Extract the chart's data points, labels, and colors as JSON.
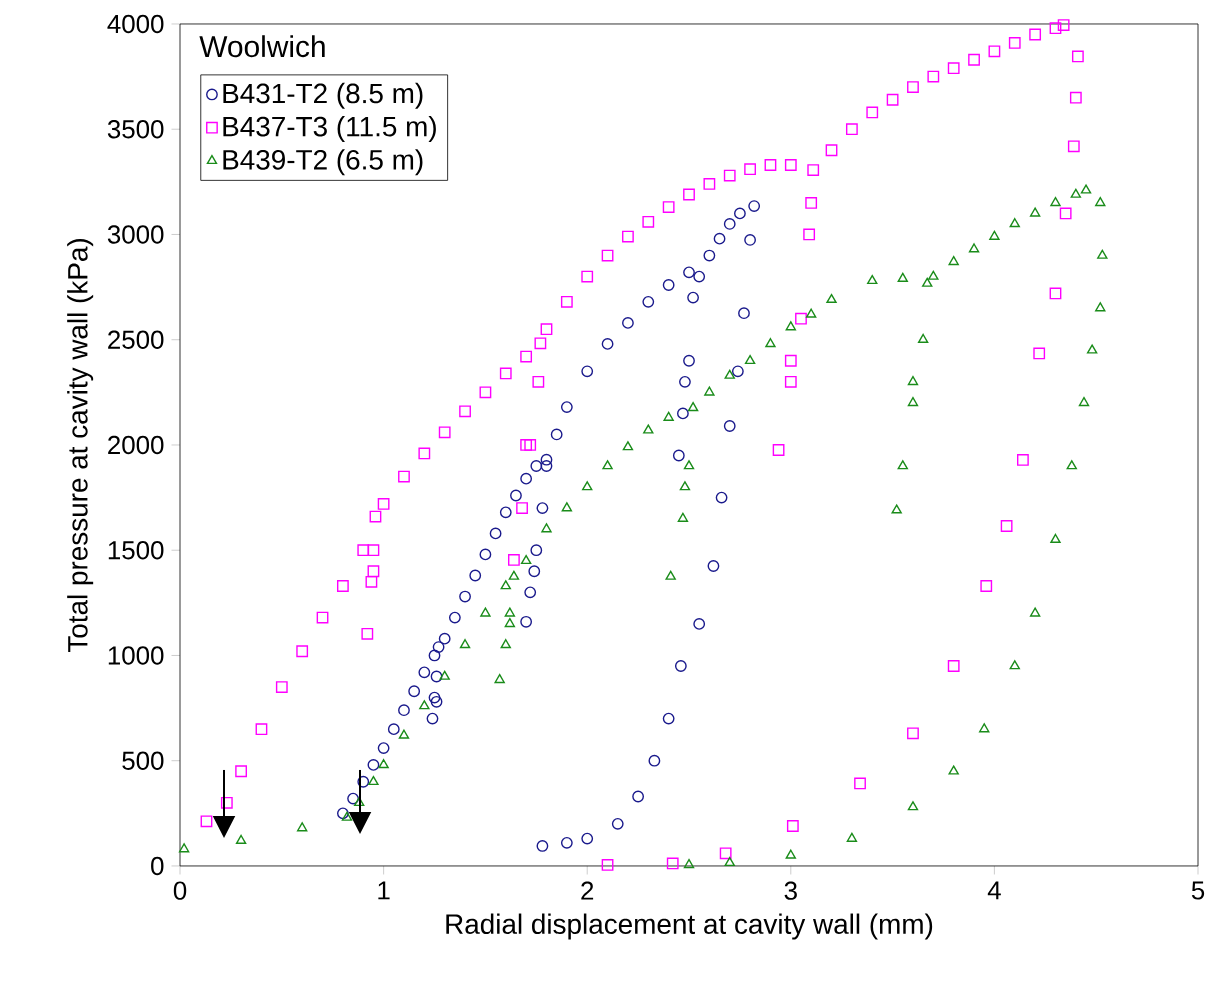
{
  "chart_data": {
    "type": "scatter",
    "xlabel": "Radial displacement at cavity wall (mm)",
    "ylabel": "Total pressure at cavity wall (kPa)",
    "legend_title": "Woolwich",
    "legend": "top left",
    "grid": false,
    "xlim": [
      0,
      5
    ],
    "xticks": [
      0,
      1,
      2,
      3,
      4,
      5
    ],
    "ylim": [
      0,
      4000
    ],
    "yticks": [
      0,
      500,
      1000,
      1500,
      2000,
      2500,
      3000,
      3500,
      4000
    ],
    "series": [
      {
        "name": "B431-T2 (8.5 m)",
        "color": "#1a1a8c",
        "marker": "circle",
        "x": [
          0.8,
          0.85,
          0.9,
          0.95,
          1.0,
          1.05,
          1.1,
          1.15,
          1.2,
          1.25,
          1.27,
          1.26,
          1.25,
          1.24,
          1.26,
          1.3,
          1.35,
          1.4,
          1.45,
          1.5,
          1.55,
          1.6,
          1.65,
          1.7,
          1.75,
          1.8,
          1.78,
          1.75,
          1.72,
          1.7,
          1.74,
          1.8,
          1.85,
          1.9,
          2.0,
          2.1,
          2.2,
          2.3,
          2.4,
          2.5,
          2.52,
          2.5,
          2.47,
          2.45,
          2.48,
          2.55,
          2.6,
          2.65,
          2.7,
          2.75,
          2.82,
          2.8,
          2.77,
          2.74,
          2.7,
          2.66,
          2.62,
          2.55,
          2.46,
          2.4,
          2.33,
          2.25,
          2.15,
          2.0,
          1.9,
          1.78
        ],
        "values": [
          250,
          320,
          400,
          480,
          560,
          650,
          740,
          830,
          920,
          1000,
          1040,
          900,
          800,
          700,
          780,
          1080,
          1180,
          1280,
          1380,
          1480,
          1580,
          1680,
          1760,
          1840,
          1900,
          1930,
          1700,
          1500,
          1300,
          1160,
          1400,
          1900,
          2050,
          2180,
          2350,
          2480,
          2580,
          2680,
          2760,
          2820,
          2700,
          2400,
          2150,
          1950,
          2300,
          2800,
          2900,
          2980,
          3050,
          3100,
          3135,
          2974,
          2626,
          2350,
          2090,
          1750,
          1425,
          1150,
          950,
          700,
          500,
          330,
          200,
          130,
          110,
          95
        ]
      },
      {
        "name": "B437-T3 (11.5 m)",
        "color": "#ff00ff",
        "marker": "square",
        "x": [
          0.13,
          0.23,
          0.3,
          0.4,
          0.5,
          0.6,
          0.7,
          0.8,
          0.9,
          0.96,
          0.95,
          0.94,
          0.92,
          0.95,
          1.0,
          1.1,
          1.2,
          1.3,
          1.4,
          1.5,
          1.6,
          1.7,
          1.77,
          1.76,
          1.72,
          1.68,
          1.64,
          1.7,
          1.8,
          1.9,
          2.0,
          2.1,
          2.2,
          2.3,
          2.4,
          2.5,
          2.6,
          2.7,
          2.8,
          2.9,
          3.0,
          3.11,
          3.09,
          3.05,
          3.0,
          2.94,
          3.0,
          3.1,
          3.2,
          3.3,
          3.4,
          3.5,
          3.6,
          3.7,
          3.8,
          3.9,
          4.0,
          4.1,
          4.2,
          4.3,
          4.34,
          4.41,
          4.4,
          4.39,
          4.35,
          4.3,
          4.22,
          4.14,
          4.06,
          3.96,
          3.8,
          3.6,
          3.34,
          3.01,
          2.68,
          2.42,
          2.1
        ],
        "values": [
          212,
          300,
          450,
          650,
          850,
          1020,
          1180,
          1330,
          1500,
          1660,
          1500,
          1350,
          1103,
          1400,
          1720,
          1850,
          1960,
          2060,
          2160,
          2250,
          2340,
          2420,
          2483,
          2300,
          2000,
          1700,
          1454,
          2000,
          2550,
          2680,
          2800,
          2900,
          2990,
          3060,
          3130,
          3190,
          3240,
          3280,
          3310,
          3330,
          3330,
          3306,
          3000,
          2600,
          2300,
          1976,
          2400,
          3150,
          3400,
          3500,
          3580,
          3640,
          3700,
          3750,
          3790,
          3830,
          3870,
          3910,
          3950,
          3980,
          3995,
          3846,
          3650,
          3419,
          3100,
          2720,
          2435,
          1929,
          1615,
          1330,
          950,
          630,
          392,
          190,
          60,
          12,
          5
        ]
      },
      {
        "name": "B439-T2 (6.5 m)",
        "color": "#1a8c1a",
        "marker": "triangle",
        "x": [
          0.02,
          0.3,
          0.6,
          0.82,
          0.88,
          0.95,
          1.0,
          1.1,
          1.2,
          1.3,
          1.4,
          1.5,
          1.6,
          1.64,
          1.62,
          1.6,
          1.57,
          1.62,
          1.7,
          1.8,
          1.9,
          2.0,
          2.1,
          2.2,
          2.3,
          2.4,
          2.52,
          2.5,
          2.47,
          2.41,
          2.48,
          2.6,
          2.7,
          2.8,
          2.9,
          3.0,
          3.1,
          3.2,
          3.4,
          3.55,
          3.67,
          3.65,
          3.6,
          3.55,
          3.52,
          3.6,
          3.7,
          3.8,
          3.9,
          4.0,
          4.1,
          4.2,
          4.3,
          4.4,
          4.45,
          4.52,
          4.53,
          4.52,
          4.48,
          4.44,
          4.38,
          4.3,
          4.2,
          4.1,
          3.95,
          3.8,
          3.6,
          3.3,
          3.0,
          2.7,
          2.5
        ],
        "values": [
          80,
          120,
          180,
          230,
          300,
          400,
          480,
          620,
          760,
          900,
          1050,
          1200,
          1330,
          1375,
          1200,
          1050,
          884,
          1150,
          1450,
          1600,
          1700,
          1800,
          1900,
          1990,
          2070,
          2130,
          2176,
          1900,
          1650,
          1375,
          1800,
          2250,
          2330,
          2400,
          2480,
          2560,
          2620,
          2690,
          2780,
          2790,
          2767,
          2500,
          2200,
          1900,
          1690,
          2300,
          2800,
          2870,
          2930,
          2990,
          3050,
          3100,
          3150,
          3190,
          3210,
          3150,
          2900,
          2650,
          2450,
          2200,
          1900,
          1550,
          1200,
          950,
          650,
          450,
          280,
          130,
          50,
          15,
          5
        ]
      }
    ]
  }
}
